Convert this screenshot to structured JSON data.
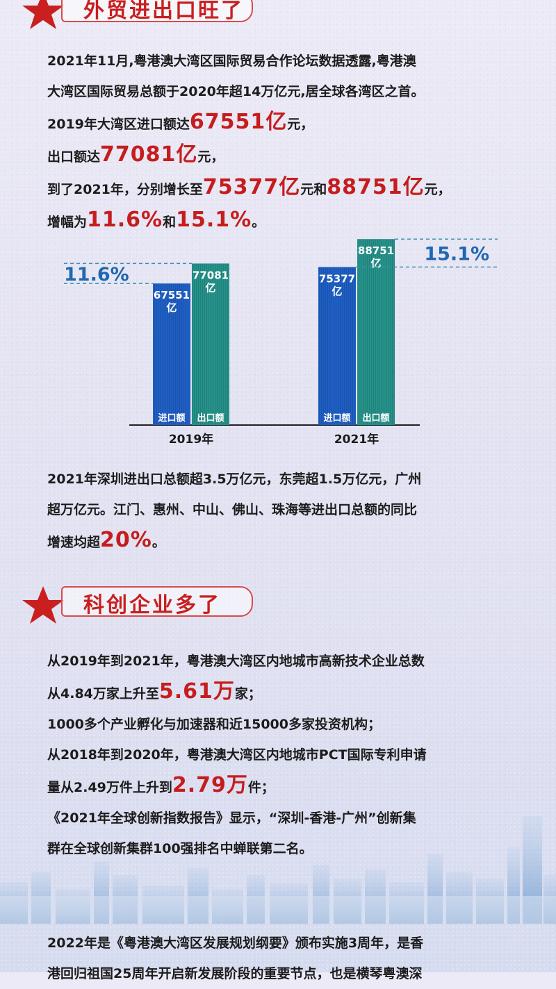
{
  "section1": {
    "title": "外贸进出口旺了",
    "p1": {
      "l1": "2021年11月,粤港澳大湾区国际贸易合作论坛数据透露,粤港澳",
      "l2": "大湾区国际贸易总额于2020年超14万亿元,居全球各湾区之首。",
      "l3a": "2019年大湾区进口额达",
      "l3b": "67551亿",
      "l3c": "元，",
      "l4a": "出口额达",
      "l4b": "77081亿",
      "l4c": "元，",
      "l5a": "到了2021年，分别增长至",
      "l5b": "75377亿",
      "l5c": "元和",
      "l5d": "88751亿",
      "l5e": "元，",
      "l6a": "增幅为",
      "l6b": "11.6%",
      "l6c": "和",
      "l6d": "15.1%",
      "l6e": "。"
    },
    "p2": {
      "l1": "2021年深圳进出口总额超3.5万亿元，东莞超1.5万亿元，广州",
      "l2": "超万亿元。江门、惠州、中山、佛山、珠海等进出口总额的同比",
      "l3a": "增速均超",
      "l3b": "20%",
      "l3c": "。"
    }
  },
  "chart_data": {
    "type": "bar",
    "categories": [
      "2019年",
      "2021年"
    ],
    "series": [
      {
        "name": "进口额",
        "values": [
          67551,
          75377
        ],
        "labels": [
          "67551\n亿",
          "75377\n亿"
        ],
        "color": "#1f5fc4"
      },
      {
        "name": "出口额",
        "values": [
          77081,
          88751
        ],
        "labels": [
          "77081\n亿",
          "88751\n亿"
        ],
        "color": "#25928a"
      }
    ],
    "value_label_lines": {
      "2019": [
        "67551",
        "亿",
        "77081",
        "亿"
      ],
      "2021": [
        "75377",
        "亿",
        "88751",
        "亿"
      ]
    },
    "growth_annotations": [
      {
        "category": "2019年",
        "text": "11.6%",
        "position": "left"
      },
      {
        "category": "2021年",
        "text": "15.1%",
        "position": "right"
      }
    ],
    "ylim": [
      0,
      100000
    ],
    "title": "",
    "xlabel": "",
    "ylabel": "",
    "grid": false
  },
  "section2": {
    "title": "科创企业多了",
    "p1": {
      "l1": "从2019年到2021年，粤港澳大湾区内地城市高新技术企业总数",
      "l2a": "从4.84万家上升至",
      "l2b": "5.61万",
      "l2c": "家；",
      "l3": "1000多个产业孵化与加速器和近15000多家投资机构；",
      "l4": "从2018年到2020年，粤港澳大湾区内地城市PCT国际专利申请",
      "l5a": "量从2.49万件上升到",
      "l5b": "2.79万",
      "l5c": "件；",
      "l6": "《2021年全球创新指数报告》显示，“深圳-香港-广州”创新集",
      "l7": "群在全球创新集群100强排名中蝉联第二名。"
    }
  },
  "footer": {
    "l1": "2022年是《粤港澳大湾区发展规划纲要》颁布实施3周年，是香",
    "l2": "港回归祖国25周年开启新发展阶段的重要节点，也是横琴粤澳深"
  },
  "colors": {
    "accent_red": "#c51d1d",
    "import_blue": "#1f5fc4",
    "export_teal": "#25928a"
  },
  "icons": {
    "section_marker": "star-icon",
    "background": "city-skyline"
  }
}
